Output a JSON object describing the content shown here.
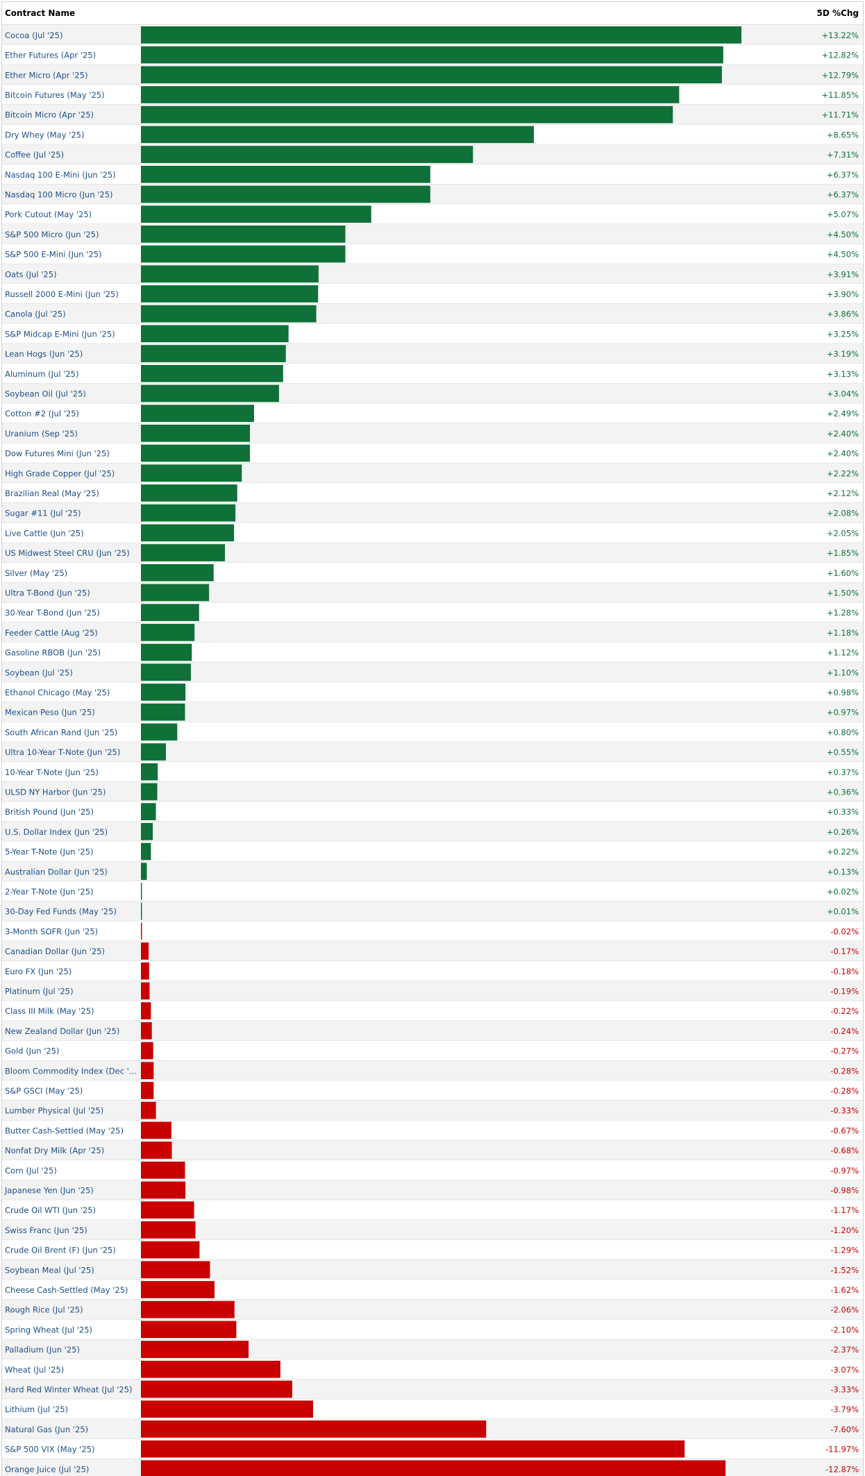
{
  "chart_data": {
    "type": "bar",
    "orientation": "horizontal",
    "columns": {
      "name": "Contract Name",
      "value": "5D %Chg"
    },
    "unit": "%",
    "colors": {
      "positive": "#0f7038",
      "negative": "#c80000",
      "positive_text": "#0f7038",
      "negative_text": "#c80000"
    },
    "rows": [
      {
        "name": "Cocoa (Jul '25)",
        "value": 13.22,
        "label": "+13.22%"
      },
      {
        "name": "Ether Futures (Apr '25)",
        "value": 12.82,
        "label": "+12.82%"
      },
      {
        "name": "Ether Micro (Apr '25)",
        "value": 12.79,
        "label": "+12.79%"
      },
      {
        "name": "Bitcoin Futures (May '25)",
        "value": 11.85,
        "label": "+11.85%"
      },
      {
        "name": "Bitcoin Micro (Apr '25)",
        "value": 11.71,
        "label": "+11.71%"
      },
      {
        "name": "Dry Whey (May '25)",
        "value": 8.65,
        "label": "+8.65%"
      },
      {
        "name": "Coffee (Jul '25)",
        "value": 7.31,
        "label": "+7.31%"
      },
      {
        "name": "Nasdaq 100 E-Mini (Jun '25)",
        "value": 6.37,
        "label": "+6.37%"
      },
      {
        "name": "Nasdaq 100 Micro (Jun '25)",
        "value": 6.37,
        "label": "+6.37%"
      },
      {
        "name": "Pork Cutout (May '25)",
        "value": 5.07,
        "label": "+5.07%"
      },
      {
        "name": "S&P 500 Micro (Jun '25)",
        "value": 4.5,
        "label": "+4.50%"
      },
      {
        "name": "S&P 500 E-Mini (Jun '25)",
        "value": 4.5,
        "label": "+4.50%"
      },
      {
        "name": "Oats (Jul '25)",
        "value": 3.91,
        "label": "+3.91%"
      },
      {
        "name": "Russell 2000 E-Mini (Jun '25)",
        "value": 3.9,
        "label": "+3.90%"
      },
      {
        "name": "Canola (Jul '25)",
        "value": 3.86,
        "label": "+3.86%"
      },
      {
        "name": "S&P Midcap E-Mini (Jun '25)",
        "value": 3.25,
        "label": "+3.25%"
      },
      {
        "name": "Lean Hogs (Jun '25)",
        "value": 3.19,
        "label": "+3.19%"
      },
      {
        "name": "Aluminum (Jul '25)",
        "value": 3.13,
        "label": "+3.13%"
      },
      {
        "name": "Soybean Oil (Jul '25)",
        "value": 3.04,
        "label": "+3.04%"
      },
      {
        "name": "Cotton #2 (Jul '25)",
        "value": 2.49,
        "label": "+2.49%"
      },
      {
        "name": "Uranium (Sep '25)",
        "value": 2.4,
        "label": "+2.40%"
      },
      {
        "name": "Dow Futures Mini (Jun '25)",
        "value": 2.4,
        "label": "+2.40%"
      },
      {
        "name": "High Grade Copper (Jul '25)",
        "value": 2.22,
        "label": "+2.22%"
      },
      {
        "name": "Brazilian Real (May '25)",
        "value": 2.12,
        "label": "+2.12%"
      },
      {
        "name": "Sugar #11 (Jul '25)",
        "value": 2.08,
        "label": "+2.08%"
      },
      {
        "name": "Live Cattle (Jun '25)",
        "value": 2.05,
        "label": "+2.05%"
      },
      {
        "name": "US Midwest Steel CRU (Jun '25)",
        "value": 1.85,
        "label": "+1.85%"
      },
      {
        "name": "Silver (May '25)",
        "value": 1.6,
        "label": "+1.60%"
      },
      {
        "name": "Ultra T-Bond (Jun '25)",
        "value": 1.5,
        "label": "+1.50%"
      },
      {
        "name": "30-Year T-Bond (Jun '25)",
        "value": 1.28,
        "label": "+1.28%"
      },
      {
        "name": "Feeder Cattle (Aug '25)",
        "value": 1.18,
        "label": "+1.18%"
      },
      {
        "name": "Gasoline RBOB (Jun '25)",
        "value": 1.12,
        "label": "+1.12%"
      },
      {
        "name": "Soybean (Jul '25)",
        "value": 1.1,
        "label": "+1.10%"
      },
      {
        "name": "Ethanol Chicago (May '25)",
        "value": 0.98,
        "label": "+0.98%"
      },
      {
        "name": "Mexican Peso (Jun '25)",
        "value": 0.97,
        "label": "+0.97%"
      },
      {
        "name": "South African Rand (Jun '25)",
        "value": 0.8,
        "label": "+0.80%"
      },
      {
        "name": "Ultra 10-Year T-Note (Jun '25)",
        "value": 0.55,
        "label": "+0.55%"
      },
      {
        "name": "10-Year T-Note (Jun '25)",
        "value": 0.37,
        "label": "+0.37%"
      },
      {
        "name": "ULSD NY Harbor (Jun '25)",
        "value": 0.36,
        "label": "+0.36%"
      },
      {
        "name": "British Pound (Jun '25)",
        "value": 0.33,
        "label": "+0.33%"
      },
      {
        "name": "U.S. Dollar Index (Jun '25)",
        "value": 0.26,
        "label": "+0.26%"
      },
      {
        "name": "5-Year T-Note (Jun '25)",
        "value": 0.22,
        "label": "+0.22%"
      },
      {
        "name": "Australian Dollar (Jun '25)",
        "value": 0.13,
        "label": "+0.13%"
      },
      {
        "name": "2-Year T-Note (Jun '25)",
        "value": 0.02,
        "label": "+0.02%"
      },
      {
        "name": "30-Day Fed Funds (May '25)",
        "value": 0.01,
        "label": "+0.01%"
      },
      {
        "name": "3-Month SOFR (Jun '25)",
        "value": -0.02,
        "label": "-0.02%"
      },
      {
        "name": "Canadian Dollar (Jun '25)",
        "value": -0.17,
        "label": "-0.17%"
      },
      {
        "name": "Euro FX (Jun '25)",
        "value": -0.18,
        "label": "-0.18%"
      },
      {
        "name": "Platinum (Jul '25)",
        "value": -0.19,
        "label": "-0.19%"
      },
      {
        "name": "Class III Milk (May '25)",
        "value": -0.22,
        "label": "-0.22%"
      },
      {
        "name": "New Zealand Dollar (Jun '25)",
        "value": -0.24,
        "label": "-0.24%"
      },
      {
        "name": "Gold (Jun '25)",
        "value": -0.27,
        "label": "-0.27%"
      },
      {
        "name": "Bloom Commodity Index (Dec '...",
        "value": -0.28,
        "label": "-0.28%"
      },
      {
        "name": "S&P GSCI (May '25)",
        "value": -0.28,
        "label": "-0.28%"
      },
      {
        "name": "Lumber Physical (Jul '25)",
        "value": -0.33,
        "label": "-0.33%"
      },
      {
        "name": "Butter Cash-Settled (May '25)",
        "value": -0.67,
        "label": "-0.67%"
      },
      {
        "name": "Nonfat Dry Milk (Apr '25)",
        "value": -0.68,
        "label": "-0.68%"
      },
      {
        "name": "Corn (Jul '25)",
        "value": -0.97,
        "label": "-0.97%"
      },
      {
        "name": "Japanese Yen (Jun '25)",
        "value": -0.98,
        "label": "-0.98%"
      },
      {
        "name": "Crude Oil WTI (Jun '25)",
        "value": -1.17,
        "label": "-1.17%"
      },
      {
        "name": "Swiss Franc (Jun '25)",
        "value": -1.2,
        "label": "-1.20%"
      },
      {
        "name": "Crude Oil Brent (F) (Jun '25)",
        "value": -1.29,
        "label": "-1.29%"
      },
      {
        "name": "Soybean Meal (Jul '25)",
        "value": -1.52,
        "label": "-1.52%"
      },
      {
        "name": "Cheese Cash-Settled (May '25)",
        "value": -1.62,
        "label": "-1.62%"
      },
      {
        "name": "Rough Rice (Jul '25)",
        "value": -2.06,
        "label": "-2.06%"
      },
      {
        "name": "Spring Wheat (Jul '25)",
        "value": -2.1,
        "label": "-2.10%"
      },
      {
        "name": "Palladium (Jun '25)",
        "value": -2.37,
        "label": "-2.37%"
      },
      {
        "name": "Wheat (Jul '25)",
        "value": -3.07,
        "label": "-3.07%"
      },
      {
        "name": "Hard Red Winter Wheat (Jul '25)",
        "value": -3.33,
        "label": "-3.33%"
      },
      {
        "name": "Lithium (Jul '25)",
        "value": -3.79,
        "label": "-3.79%"
      },
      {
        "name": "Natural Gas (Jun '25)",
        "value": -7.6,
        "label": "-7.60%"
      },
      {
        "name": "S&P 500 VIX (May '25)",
        "value": -11.97,
        "label": "-11.97%"
      },
      {
        "name": "Orange Juice (Jul '25)",
        "value": -12.87,
        "label": "-12.87%"
      }
    ]
  }
}
